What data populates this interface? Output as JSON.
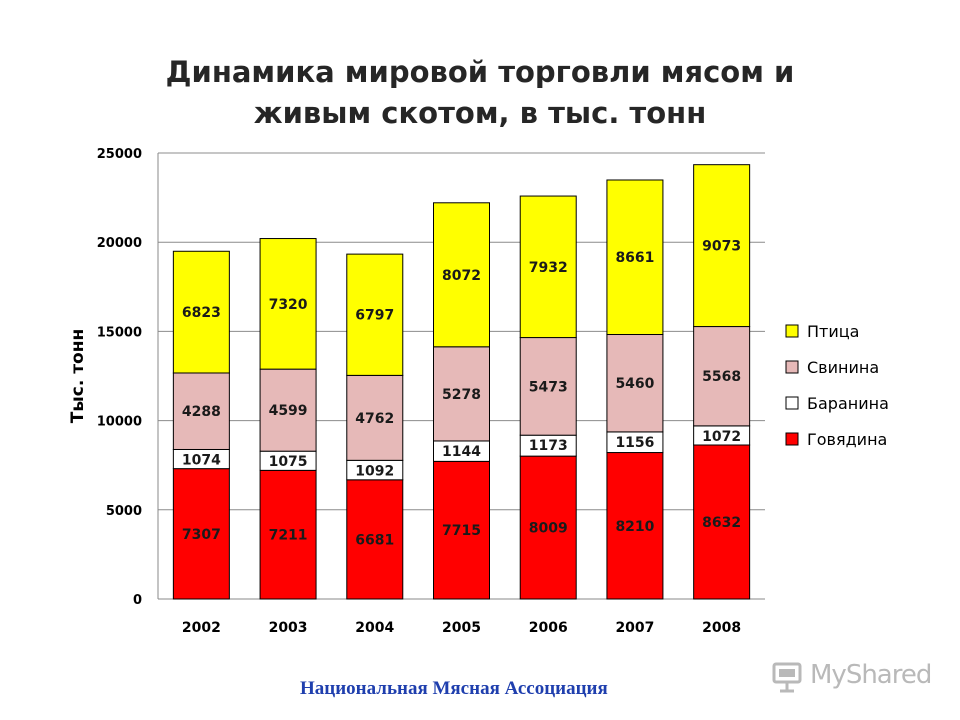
{
  "chart_data": {
    "type": "bar",
    "stacked": true,
    "title": [
      "Динамика мировой торговли мясом и",
      "живым скотом, в тыс. тонн"
    ],
    "ylabel": "Тыс. тонн",
    "xlabel": "",
    "ylim": [
      0,
      25000
    ],
    "yticks": [
      "0",
      "5000",
      "10000",
      "15000",
      "20000",
      "25000"
    ],
    "categories": [
      "2002",
      "2003",
      "2004",
      "2005",
      "2006",
      "2007",
      "2008"
    ],
    "series": [
      {
        "name": "Говядина",
        "color": "#ff0000",
        "values": [
          7307,
          7211,
          6681,
          7715,
          8009,
          8210,
          8632
        ]
      },
      {
        "name": "Баранина",
        "color": "#ffffff",
        "values": [
          1074,
          1075,
          1092,
          1144,
          1173,
          1156,
          1072
        ]
      },
      {
        "name": "Свинина",
        "color": "#e6b9b8",
        "values": [
          4288,
          4599,
          4762,
          5278,
          5473,
          5460,
          5568
        ]
      },
      {
        "name": "Птица",
        "color": "#ffff00",
        "values": [
          6823,
          7320,
          6797,
          8072,
          7932,
          8661,
          9073
        ]
      }
    ],
    "legend_order": [
      "Птица",
      "Свинина",
      "Баранина",
      "Говядина"
    ],
    "legend_position": "right",
    "grid": true
  },
  "footer": {
    "source": "Национальная Мясная Ассоциация"
  },
  "logo": {
    "text": "MyShared",
    "icon": "presentation-icon"
  }
}
